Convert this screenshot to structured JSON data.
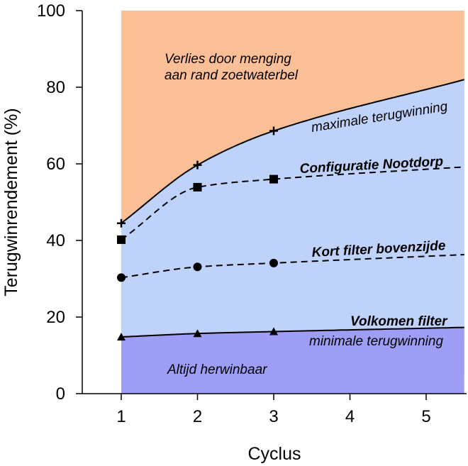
{
  "chart_data": {
    "type": "area",
    "title": "",
    "xlabel": "Cyclus",
    "ylabel": "Terugwinrendement (%)",
    "xlim": [
      0.5,
      5.5
    ],
    "ylim": [
      0,
      100
    ],
    "x_ticks": [
      1,
      2,
      3,
      4,
      5
    ],
    "y_ticks": [
      0,
      20,
      40,
      60,
      80,
      100
    ],
    "grid": false,
    "region_colors": {
      "top": "#FBBF98",
      "middle": "#BED2FA",
      "bottom": "#9E9EF6"
    },
    "series": [
      {
        "name": "maximale terugwinning",
        "style": "solid",
        "marker": "plus",
        "x": [
          1,
          2,
          3
        ],
        "values": [
          44.5,
          59.7,
          68.6
        ],
        "curve_end": 82
      },
      {
        "name": "Configuratie Nootdorp",
        "style": "dashed",
        "marker": "square",
        "x": [
          1,
          2,
          3
        ],
        "values": [
          40.2,
          53.9,
          56
        ],
        "curve_end": 59.2
      },
      {
        "name": "Kort filter bovenzijde",
        "style": "dashed",
        "marker": "circle",
        "x": [
          1,
          2,
          3
        ],
        "values": [
          30.3,
          33.1,
          34.1
        ],
        "curve_end": 36.3
      },
      {
        "name": "Volkomen filter",
        "style": "solid",
        "marker": "triangle",
        "x": [
          1,
          2,
          3
        ],
        "values": [
          14.8,
          15.7,
          16.2
        ],
        "curve_end": 17.3
      }
    ],
    "annotations": {
      "top_region_line1": "Verlies door menging",
      "top_region_line2": "aan rand zoetwaterbel",
      "bottom_region": "Altijd herwinbaar",
      "max_curve": "maximale terugwinning",
      "nootdorp": "Configuratie Nootdorp",
      "kort_filter": "Kort filter bovenzijde",
      "volkomen": "Volkomen filter",
      "min_curve": "minimale terugwinning"
    }
  }
}
